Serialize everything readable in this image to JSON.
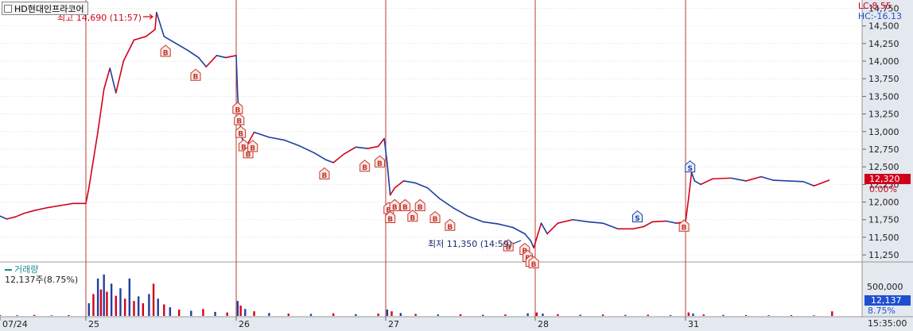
{
  "header": {
    "title": "HD현대인프라코어",
    "lc": "LC:8.55",
    "hc": "HC:-16.13"
  },
  "annotations": {
    "high_label": "최고 14,690 (11:57)",
    "low_label": "최저 11,350 (14:59)"
  },
  "volume": {
    "name": "거래량",
    "summary": "12,137주(8.75%)",
    "axis_label": "500,000",
    "last_value": "12,137",
    "last_pct": "8.75%"
  },
  "price_tag": {
    "value": "12,320",
    "pct": "0.00%"
  },
  "time_label": "15:35:00",
  "colors": {
    "up": "#d0021b",
    "down": "#1f3fa0",
    "day_line": "#c0392b",
    "grid": "#cfcfcf",
    "buy_marker": "#c0392b",
    "sell_marker": "#1f3fa0"
  },
  "chart_data": {
    "type": "line",
    "title": "HD현대인프라코어",
    "x_axis_labels": [
      "07/24",
      "25",
      "26",
      "27",
      "28",
      "31"
    ],
    "y_ticks": [
      "14,750",
      "14,500",
      "14,250",
      "14,000",
      "13,750",
      "13,500",
      "13,250",
      "13,000",
      "12,750",
      "12,500",
      "12,250",
      "12,000",
      "11,750",
      "11,500",
      "11,250"
    ],
    "ylim": [
      11150,
      14800
    ],
    "grid": true,
    "high": {
      "value": 14690,
      "time": "11:57",
      "day": "25"
    },
    "low": {
      "value": 11350,
      "time": "14:59",
      "day": "28"
    },
    "last_price": 12320,
    "price_series": [
      {
        "t": 0.0,
        "v": 11800
      },
      {
        "t": 0.08,
        "v": 11760
      },
      {
        "t": 0.18,
        "v": 11790
      },
      {
        "t": 0.28,
        "v": 11840
      },
      {
        "t": 0.4,
        "v": 11880
      },
      {
        "t": 0.55,
        "v": 11920
      },
      {
        "t": 0.7,
        "v": 11950
      },
      {
        "t": 0.85,
        "v": 11980
      },
      {
        "t": 1.0,
        "v": 11980
      },
      {
        "t": 1.02,
        "v": 12200
      },
      {
        "t": 1.05,
        "v": 12600
      },
      {
        "t": 1.08,
        "v": 13000
      },
      {
        "t": 1.12,
        "v": 13600
      },
      {
        "t": 1.16,
        "v": 13900
      },
      {
        "t": 1.2,
        "v": 13550
      },
      {
        "t": 1.25,
        "v": 14000
      },
      {
        "t": 1.32,
        "v": 14300
      },
      {
        "t": 1.4,
        "v": 14350
      },
      {
        "t": 1.46,
        "v": 14450
      },
      {
        "t": 1.47,
        "v": 14690
      },
      {
        "t": 1.52,
        "v": 14350
      },
      {
        "t": 1.6,
        "v": 14250
      },
      {
        "t": 1.68,
        "v": 14150
      },
      {
        "t": 1.75,
        "v": 14050
      },
      {
        "t": 1.8,
        "v": 13920
      },
      {
        "t": 1.87,
        "v": 14080
      },
      {
        "t": 1.93,
        "v": 14050
      },
      {
        "t": 2.0,
        "v": 14080
      },
      {
        "t": 2.01,
        "v": 13500
      },
      {
        "t": 2.02,
        "v": 13200
      },
      {
        "t": 2.04,
        "v": 12900
      },
      {
        "t": 2.07,
        "v": 12800
      },
      {
        "t": 2.12,
        "v": 12990
      },
      {
        "t": 2.22,
        "v": 12920
      },
      {
        "t": 2.32,
        "v": 12880
      },
      {
        "t": 2.42,
        "v": 12800
      },
      {
        "t": 2.52,
        "v": 12700
      },
      {
        "t": 2.6,
        "v": 12600
      },
      {
        "t": 2.65,
        "v": 12560
      },
      {
        "t": 2.72,
        "v": 12680
      },
      {
        "t": 2.8,
        "v": 12780
      },
      {
        "t": 2.88,
        "v": 12760
      },
      {
        "t": 2.95,
        "v": 12790
      },
      {
        "t": 2.99,
        "v": 12900
      },
      {
        "t": 3.01,
        "v": 12550
      },
      {
        "t": 3.03,
        "v": 12100
      },
      {
        "t": 3.06,
        "v": 12200
      },
      {
        "t": 3.12,
        "v": 12300
      },
      {
        "t": 3.2,
        "v": 12270
      },
      {
        "t": 3.28,
        "v": 12200
      },
      {
        "t": 3.36,
        "v": 12050
      },
      {
        "t": 3.45,
        "v": 11920
      },
      {
        "t": 3.55,
        "v": 11800
      },
      {
        "t": 3.65,
        "v": 11720
      },
      {
        "t": 3.75,
        "v": 11690
      },
      {
        "t": 3.85,
        "v": 11640
      },
      {
        "t": 3.93,
        "v": 11550
      },
      {
        "t": 3.97,
        "v": 11450
      },
      {
        "t": 3.99,
        "v": 11350
      },
      {
        "t": 4.0,
        "v": 11420
      },
      {
        "t": 4.04,
        "v": 11700
      },
      {
        "t": 4.08,
        "v": 11550
      },
      {
        "t": 4.15,
        "v": 11700
      },
      {
        "t": 4.25,
        "v": 11750
      },
      {
        "t": 4.35,
        "v": 11720
      },
      {
        "t": 4.45,
        "v": 11700
      },
      {
        "t": 4.55,
        "v": 11620
      },
      {
        "t": 4.65,
        "v": 11620
      },
      {
        "t": 4.72,
        "v": 11650
      },
      {
        "t": 4.78,
        "v": 11720
      },
      {
        "t": 4.87,
        "v": 11730
      },
      {
        "t": 4.94,
        "v": 11700
      },
      {
        "t": 5.0,
        "v": 11720
      },
      {
        "t": 5.02,
        "v": 12050
      },
      {
        "t": 5.04,
        "v": 12420
      },
      {
        "t": 5.06,
        "v": 12300
      },
      {
        "t": 5.1,
        "v": 12250
      },
      {
        "t": 5.18,
        "v": 12330
      },
      {
        "t": 5.3,
        "v": 12340
      },
      {
        "t": 5.4,
        "v": 12300
      },
      {
        "t": 5.5,
        "v": 12360
      },
      {
        "t": 5.58,
        "v": 12310
      },
      {
        "t": 5.68,
        "v": 12300
      },
      {
        "t": 5.78,
        "v": 12290
      },
      {
        "t": 5.85,
        "v": 12230
      },
      {
        "t": 5.9,
        "v": 12270
      },
      {
        "t": 5.95,
        "v": 12310
      }
    ],
    "buy_markers": [
      {
        "t": 1.53,
        "v": 14270
      },
      {
        "t": 1.73,
        "v": 13930
      },
      {
        "t": 2.01,
        "v": 13460
      },
      {
        "t": 2.02,
        "v": 13300
      },
      {
        "t": 2.03,
        "v": 13120
      },
      {
        "t": 2.05,
        "v": 12930
      },
      {
        "t": 2.08,
        "v": 12830
      },
      {
        "t": 2.11,
        "v": 12920
      },
      {
        "t": 2.59,
        "v": 12530
      },
      {
        "t": 2.86,
        "v": 12640
      },
      {
        "t": 2.96,
        "v": 12700
      },
      {
        "t": 3.02,
        "v": 12040
      },
      {
        "t": 3.03,
        "v": 11910
      },
      {
        "t": 3.06,
        "v": 12080
      },
      {
        "t": 3.13,
        "v": 12080
      },
      {
        "t": 3.18,
        "v": 11930
      },
      {
        "t": 3.23,
        "v": 12080
      },
      {
        "t": 3.33,
        "v": 11910
      },
      {
        "t": 3.43,
        "v": 11800
      },
      {
        "t": 3.82,
        "v": 11510
      },
      {
        "t": 3.93,
        "v": 11460
      },
      {
        "t": 3.95,
        "v": 11360
      },
      {
        "t": 3.97,
        "v": 11290
      },
      {
        "t": 3.99,
        "v": 11270
      },
      {
        "t": 4.99,
        "v": 11790
      }
    ],
    "sell_markers": [
      {
        "t": 4.68,
        "v": 11650
      },
      {
        "t": 5.03,
        "v": 12360
      }
    ],
    "volume_series": [
      {
        "t": 0.0,
        "v": 15000
      },
      {
        "t": 0.2,
        "v": 12000
      },
      {
        "t": 0.4,
        "v": 18000
      },
      {
        "t": 0.6,
        "v": 10000
      },
      {
        "t": 0.8,
        "v": 14000
      },
      {
        "t": 1.02,
        "v": 220000
      },
      {
        "t": 1.05,
        "v": 380000
      },
      {
        "t": 1.08,
        "v": 650000
      },
      {
        "t": 1.1,
        "v": 460000
      },
      {
        "t": 1.12,
        "v": 720000
      },
      {
        "t": 1.14,
        "v": 420000
      },
      {
        "t": 1.17,
        "v": 560000
      },
      {
        "t": 1.2,
        "v": 350000
      },
      {
        "t": 1.23,
        "v": 480000
      },
      {
        "t": 1.26,
        "v": 300000
      },
      {
        "t": 1.29,
        "v": 650000
      },
      {
        "t": 1.32,
        "v": 260000
      },
      {
        "t": 1.35,
        "v": 340000
      },
      {
        "t": 1.38,
        "v": 220000
      },
      {
        "t": 1.42,
        "v": 380000
      },
      {
        "t": 1.45,
        "v": 560000
      },
      {
        "t": 1.48,
        "v": 300000
      },
      {
        "t": 1.52,
        "v": 200000
      },
      {
        "t": 1.56,
        "v": 150000
      },
      {
        "t": 1.62,
        "v": 110000
      },
      {
        "t": 1.7,
        "v": 90000
      },
      {
        "t": 1.78,
        "v": 120000
      },
      {
        "t": 1.86,
        "v": 70000
      },
      {
        "t": 1.94,
        "v": 60000
      },
      {
        "t": 2.01,
        "v": 260000
      },
      {
        "t": 2.03,
        "v": 180000
      },
      {
        "t": 2.06,
        "v": 120000
      },
      {
        "t": 2.12,
        "v": 80000
      },
      {
        "t": 2.22,
        "v": 50000
      },
      {
        "t": 2.35,
        "v": 40000
      },
      {
        "t": 2.5,
        "v": 35000
      },
      {
        "t": 2.65,
        "v": 45000
      },
      {
        "t": 2.8,
        "v": 30000
      },
      {
        "t": 2.95,
        "v": 40000
      },
      {
        "t": 3.01,
        "v": 110000
      },
      {
        "t": 3.04,
        "v": 80000
      },
      {
        "t": 3.1,
        "v": 50000
      },
      {
        "t": 3.2,
        "v": 35000
      },
      {
        "t": 3.35,
        "v": 25000
      },
      {
        "t": 3.5,
        "v": 30000
      },
      {
        "t": 3.65,
        "v": 20000
      },
      {
        "t": 3.8,
        "v": 25000
      },
      {
        "t": 3.95,
        "v": 45000
      },
      {
        "t": 4.01,
        "v": 60000
      },
      {
        "t": 4.05,
        "v": 40000
      },
      {
        "t": 4.15,
        "v": 30000
      },
      {
        "t": 4.3,
        "v": 20000
      },
      {
        "t": 4.45,
        "v": 25000
      },
      {
        "t": 4.6,
        "v": 18000
      },
      {
        "t": 4.75,
        "v": 22000
      },
      {
        "t": 4.9,
        "v": 15000
      },
      {
        "t": 5.02,
        "v": 60000
      },
      {
        "t": 5.05,
        "v": 40000
      },
      {
        "t": 5.12,
        "v": 25000
      },
      {
        "t": 5.25,
        "v": 18000
      },
      {
        "t": 5.4,
        "v": 15000
      },
      {
        "t": 5.55,
        "v": 12000
      },
      {
        "t": 5.7,
        "v": 14000
      },
      {
        "t": 5.85,
        "v": 10000
      },
      {
        "t": 5.97,
        "v": 80000
      }
    ],
    "volume_ylim": [
      0,
      800000
    ]
  }
}
